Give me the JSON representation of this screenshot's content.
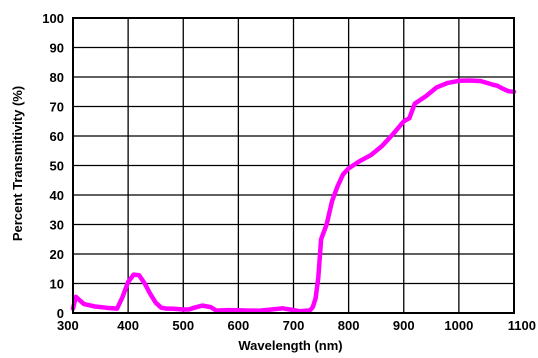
{
  "chart_data": {
    "type": "line",
    "title": "",
    "xlabel": "Wavelength (nm)",
    "ylabel": "Percent Transmitivity (%)",
    "xlim": [
      300,
      1100
    ],
    "ylim": [
      0,
      100
    ],
    "x_ticks": [
      300,
      400,
      500,
      600,
      700,
      800,
      900,
      1000,
      1100
    ],
    "y_ticks": [
      0,
      10,
      20,
      30,
      40,
      50,
      60,
      70,
      80,
      90,
      100
    ],
    "grid": true,
    "line_color": "#ff00ff",
    "series": [
      {
        "x": [
          300,
          305,
          320,
          340,
          360,
          380,
          390,
          400,
          410,
          420,
          430,
          440,
          450,
          460,
          470,
          480,
          500,
          510,
          520,
          535,
          550,
          560,
          580,
          600,
          620,
          640,
          660,
          680,
          700,
          710,
          720,
          730,
          735,
          740,
          745,
          750,
          760,
          770,
          780,
          790,
          800,
          820,
          840,
          860,
          880,
          900,
          905,
          910,
          920,
          940,
          960,
          980,
          1000,
          1020,
          1040,
          1060,
          1070,
          1075,
          1080,
          1090,
          1100
        ],
        "y": [
          1.5,
          5.5,
          3.0,
          2.2,
          1.8,
          1.5,
          5.5,
          10.5,
          13.0,
          12.8,
          10.0,
          6.5,
          3.5,
          1.8,
          1.5,
          1.5,
          1.2,
          1.2,
          1.8,
          2.5,
          2.0,
          0.8,
          1.0,
          0.9,
          0.8,
          0.8,
          1.2,
          1.6,
          1.0,
          0.6,
          0.7,
          0.9,
          2.0,
          5.0,
          12.0,
          25.0,
          30.0,
          38.0,
          43.0,
          47.0,
          49.0,
          51.5,
          53.5,
          56.5,
          60.5,
          65.0,
          65.5,
          66.0,
          71.0,
          73.5,
          76.5,
          78.0,
          78.7,
          78.8,
          78.6,
          77.5,
          77.0,
          76.5,
          76.0,
          75.2,
          75.0
        ]
      }
    ]
  }
}
